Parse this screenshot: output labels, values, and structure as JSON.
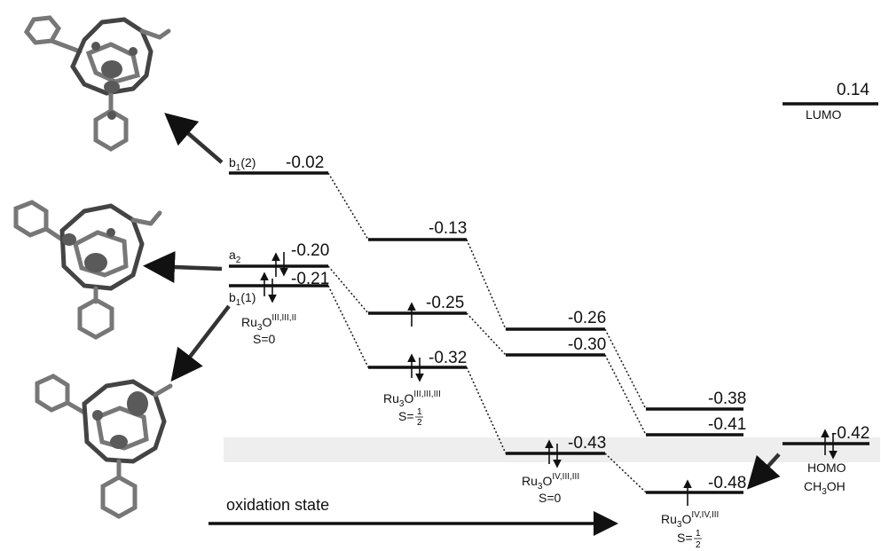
{
  "levels": [
    {
      "id": "b1-2",
      "value": "-0.02",
      "orbital": "b",
      "orbital_sub": "1",
      "orbital_tail": "(2)"
    },
    {
      "id": "a2",
      "value": "-0.20",
      "orbital": "a",
      "orbital_sub": "2",
      "orbital_tail": ""
    },
    {
      "id": "b1-1",
      "value": "-0.21",
      "orbital": "b",
      "orbital_sub": "1",
      "orbital_tail": "(1)"
    },
    {
      "id": "c2-top",
      "value": "-0.13"
    },
    {
      "id": "c2-mid",
      "value": "-0.25"
    },
    {
      "id": "c2-bot",
      "value": "-0.32"
    },
    {
      "id": "c3-top",
      "value": "-0.26"
    },
    {
      "id": "c3-mid",
      "value": "-0.30"
    },
    {
      "id": "c3-bot",
      "value": "-0.43"
    },
    {
      "id": "c4-top",
      "value": "-0.38"
    },
    {
      "id": "c4-mid",
      "value": "-0.41"
    },
    {
      "id": "c4-bot",
      "value": "-0.48"
    },
    {
      "id": "lumo",
      "value": "0.14",
      "label": "LUMO"
    },
    {
      "id": "homo",
      "value": "-0.42",
      "label": "HOMO",
      "species": "CH",
      "species_sub": "3",
      "species_tail": "OH"
    }
  ],
  "states": [
    {
      "id": "s1",
      "formula": "Ru",
      "sub": "3",
      "o": "O",
      "sup": "III,III,II",
      "spin": "S=0"
    },
    {
      "id": "s2",
      "formula": "Ru",
      "sub": "3",
      "o": "O",
      "sup": "III,III,III",
      "spin": "S=",
      "frac_num": "1",
      "frac_den": "2"
    },
    {
      "id": "s3",
      "formula": "Ru",
      "sub": "3",
      "o": "O",
      "sup": "IV,III,III",
      "spin": "S=0"
    },
    {
      "id": "s4",
      "formula": "Ru",
      "sub": "3",
      "o": "O",
      "sup": "IV,IV,III",
      "spin": "S=",
      "frac_num": "1",
      "frac_den": "2"
    }
  ],
  "axis_label": "oxidation state"
}
